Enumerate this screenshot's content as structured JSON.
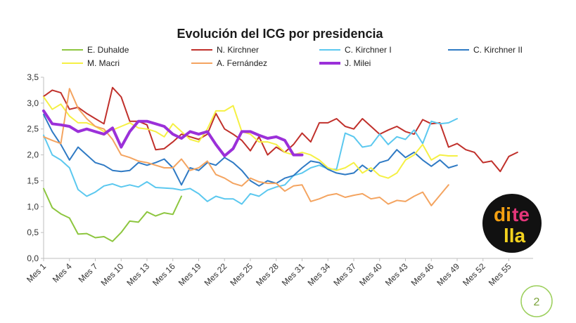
{
  "chart_data": {
    "type": "line",
    "title": "Evolución del ICG por presidencia",
    "xlabel": "",
    "ylabel": "",
    "ylim": [
      0,
      3.5
    ],
    "yticks": [
      "0,0",
      "0,5",
      "1,0",
      "1,5",
      "2,0",
      "2,5",
      "3,0",
      "3,5"
    ],
    "xticks": [
      "Mes 1",
      "Mes 4",
      "Mes 7",
      "Mes 10",
      "Mes 13",
      "Mes 16",
      "Mes 19",
      "Mes 22",
      "Mes 25",
      "Mes 28",
      "Mes 31",
      "Mes 34",
      "Mes 37",
      "Mes 40",
      "Mes 43",
      "Mes 46",
      "Mes 49",
      "Mes 52",
      "Mes 55"
    ],
    "grid": false,
    "legend": "top",
    "series": [
      {
        "name": "E. Duhalde",
        "color": "#8dc63f",
        "width": 2,
        "values": [
          1.35,
          0.98,
          0.86,
          0.78,
          0.47,
          0.48,
          0.4,
          0.42,
          0.33,
          0.5,
          0.72,
          0.7,
          0.9,
          0.82,
          0.88,
          0.85,
          1.2
        ]
      },
      {
        "name": "N. Kirchner",
        "color": "#c0302b",
        "width": 2,
        "values": [
          3.13,
          3.25,
          3.2,
          2.88,
          2.92,
          2.8,
          2.7,
          2.6,
          3.3,
          3.12,
          2.65,
          2.65,
          2.58,
          2.1,
          2.12,
          2.25,
          2.4,
          2.35,
          2.3,
          2.4,
          2.8,
          2.5,
          2.4,
          2.28,
          2.08,
          2.35,
          2.0,
          2.15,
          2.05,
          2.2,
          2.42,
          2.25,
          2.62,
          2.62,
          2.7,
          2.55,
          2.5,
          2.7,
          2.55,
          2.4,
          2.48,
          2.55,
          2.45,
          2.4,
          2.68,
          2.6,
          2.62,
          2.15,
          2.22,
          2.1,
          2.05,
          1.85,
          1.88,
          1.68,
          1.97,
          2.05
        ]
      },
      {
        "name": "C. Kirchner I",
        "color": "#5bc8ef",
        "width": 2,
        "values": [
          2.38,
          2.0,
          1.9,
          1.75,
          1.33,
          1.2,
          1.28,
          1.4,
          1.44,
          1.38,
          1.42,
          1.38,
          1.48,
          1.37,
          1.36,
          1.35,
          1.32,
          1.35,
          1.25,
          1.1,
          1.2,
          1.15,
          1.15,
          1.05,
          1.25,
          1.2,
          1.32,
          1.38,
          1.42,
          1.6,
          1.65,
          1.75,
          1.8,
          1.73,
          1.72,
          2.42,
          2.35,
          2.15,
          2.18,
          2.4,
          2.2,
          2.35,
          2.3,
          2.48,
          2.22,
          2.65,
          2.6,
          2.62,
          2.7
        ]
      },
      {
        "name": "C. Kirchner II",
        "color": "#2f7ac4",
        "width": 2,
        "values": [
          2.78,
          2.45,
          2.2,
          1.9,
          2.15,
          2.0,
          1.85,
          1.8,
          1.7,
          1.68,
          1.7,
          1.85,
          1.8,
          1.85,
          1.92,
          1.75,
          1.42,
          1.75,
          1.7,
          1.85,
          1.8,
          1.95,
          1.85,
          1.7,
          1.5,
          1.4,
          1.5,
          1.45,
          1.55,
          1.6,
          1.75,
          1.88,
          1.85,
          1.72,
          1.65,
          1.62,
          1.65,
          1.8,
          1.68,
          1.85,
          1.9,
          2.1,
          1.95,
          2.05,
          1.9,
          1.78,
          1.9,
          1.75,
          1.8
        ]
      },
      {
        "name": "M. Macri",
        "color": "#f5f044",
        "width": 2,
        "values": [
          3.12,
          2.88,
          2.98,
          2.75,
          2.62,
          2.62,
          2.55,
          2.45,
          2.48,
          2.55,
          2.62,
          2.52,
          2.5,
          2.45,
          2.35,
          2.6,
          2.45,
          2.3,
          2.25,
          2.5,
          2.85,
          2.85,
          2.95,
          2.45,
          2.4,
          2.25,
          2.25,
          2.2,
          2.05,
          2.0,
          2.05,
          2.0,
          1.9,
          1.75,
          1.7,
          1.75,
          1.85,
          1.65,
          1.75,
          1.6,
          1.55,
          1.65,
          1.9,
          2.0,
          2.2,
          1.9,
          2.0,
          1.98,
          1.98
        ]
      },
      {
        "name": "A. Fernández",
        "color": "#f4a460",
        "width": 2,
        "values": [
          2.35,
          2.28,
          2.22,
          3.28,
          2.9,
          2.7,
          2.55,
          2.5,
          2.3,
          2.0,
          1.95,
          1.88,
          1.85,
          1.8,
          1.75,
          1.75,
          1.92,
          1.7,
          1.75,
          1.88,
          1.62,
          1.55,
          1.45,
          1.4,
          1.55,
          1.48,
          1.45,
          1.45,
          1.3,
          1.4,
          1.42,
          1.1,
          1.15,
          1.22,
          1.25,
          1.18,
          1.22,
          1.25,
          1.15,
          1.18,
          1.05,
          1.12,
          1.1,
          1.2,
          1.28,
          1.02,
          1.22,
          1.42
        ]
      },
      {
        "name": "J. Milei",
        "color": "#9b30d9",
        "width": 4,
        "values": [
          2.85,
          2.6,
          2.58,
          2.55,
          2.45,
          2.5,
          2.45,
          2.4,
          2.52,
          2.15,
          2.45,
          2.65,
          2.65,
          2.6,
          2.55,
          2.4,
          2.32,
          2.45,
          2.4,
          2.45,
          2.2,
          1.98,
          2.12,
          2.45,
          2.45,
          2.38,
          2.32,
          2.35,
          2.28,
          2.0,
          2.0
        ]
      }
    ]
  },
  "logo": {
    "line1": "di",
    "line1b": "te",
    "line2": "lla"
  },
  "page_number": "2"
}
